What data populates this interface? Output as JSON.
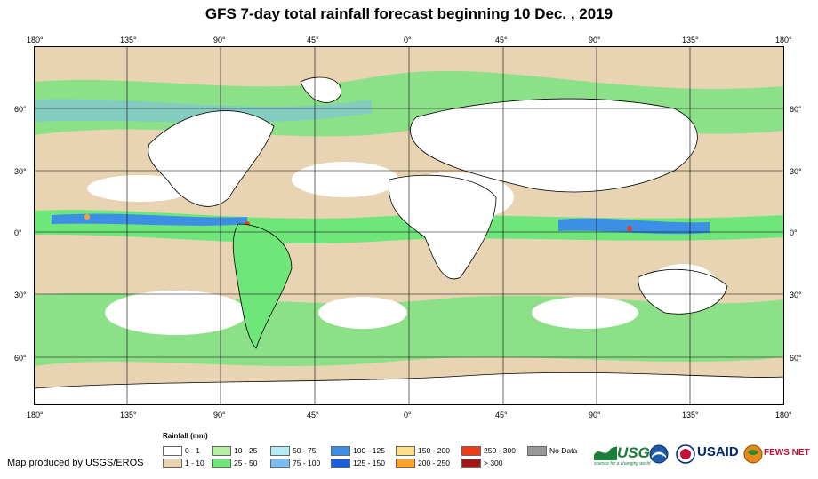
{
  "title": "GFS 7-day total rainfall forecast beginning 10 Dec. , 2019",
  "lon_labels": [
    "180°",
    "135°",
    "90°",
    "45°",
    "0°",
    "45°",
    "90°",
    "135°",
    "180°"
  ],
  "lat_labels": [
    "60°",
    "30°",
    "0°",
    "30°",
    "60°"
  ],
  "legend": {
    "title": "Rainfall (mm)",
    "items": [
      {
        "label": "0 - 1",
        "color": "#ffffff"
      },
      {
        "label": "1 - 10",
        "color": "#e8d4b3"
      },
      {
        "label": "10 - 25",
        "color": "#b6f0a4"
      },
      {
        "label": "25 - 50",
        "color": "#6ee67a"
      },
      {
        "label": "50 - 75",
        "color": "#b4ebf7"
      },
      {
        "label": "75 - 100",
        "color": "#7cbcef"
      },
      {
        "label": "100 - 125",
        "color": "#3d8fe6"
      },
      {
        "label": "125 - 150",
        "color": "#1c5ed6"
      },
      {
        "label": "150 - 200",
        "color": "#ffe08a"
      },
      {
        "label": "200 - 250",
        "color": "#ffa22a"
      },
      {
        "label": "250 - 300",
        "color": "#f03c14"
      },
      {
        "label": "> 300",
        "color": "#a01818"
      },
      {
        "label": "No Data",
        "color": "#999999"
      }
    ]
  },
  "credit": "Map produced by USGS/EROS",
  "logos": {
    "usgs": "USGS",
    "usgs_tagline": "science for a changing world",
    "usaid": "USAID",
    "fews": "FEWS NET"
  }
}
